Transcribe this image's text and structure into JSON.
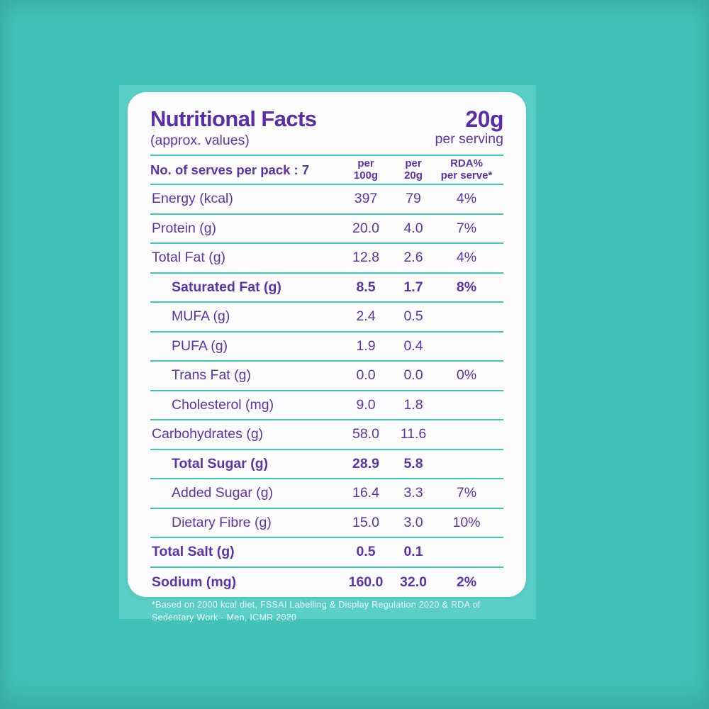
{
  "colors": {
    "background": "#41C2B8",
    "panel": "#5ACFC7",
    "card": "#FCFCFC",
    "text_purple": "#5B34A9",
    "divider_teal": "#3FC9BD"
  },
  "header": {
    "title": "Nutritional Facts",
    "subtitle": "(approx. values)",
    "serving_size": "20g",
    "serving_label": "per serving"
  },
  "table": {
    "serves_label": "No. of serves per pack : 7",
    "columns": [
      {
        "line1": "per",
        "line2": "100g"
      },
      {
        "line1": "per",
        "line2": "20g"
      },
      {
        "line1": "RDA%",
        "line2": "per serve*"
      }
    ],
    "rows": [
      {
        "label": "Energy (kcal)",
        "per100": "397",
        "per20": "79",
        "rda": "4%",
        "bold": false,
        "indent": false
      },
      {
        "label": "Protein (g)",
        "per100": "20.0",
        "per20": "4.0",
        "rda": "7%",
        "bold": false,
        "indent": false
      },
      {
        "label": "Total Fat (g)",
        "per100": "12.8",
        "per20": "2.6",
        "rda": "4%",
        "bold": false,
        "indent": false
      },
      {
        "label": "Saturated Fat (g)",
        "per100": "8.5",
        "per20": "1.7",
        "rda": "8%",
        "bold": true,
        "indent": true
      },
      {
        "label": "MUFA (g)",
        "per100": "2.4",
        "per20": "0.5",
        "rda": "",
        "bold": false,
        "indent": true
      },
      {
        "label": "PUFA (g)",
        "per100": "1.9",
        "per20": "0.4",
        "rda": "",
        "bold": false,
        "indent": true
      },
      {
        "label": "Trans Fat (g)",
        "per100": "0.0",
        "per20": "0.0",
        "rda": "0%",
        "bold": false,
        "indent": true
      },
      {
        "label": "Cholesterol (mg)",
        "per100": "9.0",
        "per20": "1.8",
        "rda": "",
        "bold": false,
        "indent": true
      },
      {
        "label": "Carbohydrates (g)",
        "per100": "58.0",
        "per20": "11.6",
        "rda": "",
        "bold": false,
        "indent": false
      },
      {
        "label": "Total Sugar (g)",
        "per100": "28.9",
        "per20": "5.8",
        "rda": "",
        "bold": true,
        "indent": true
      },
      {
        "label": "Added Sugar (g)",
        "per100": "16.4",
        "per20": "3.3",
        "rda": "7%",
        "bold": false,
        "indent": true
      },
      {
        "label": "Dietary Fibre (g)",
        "per100": "15.0",
        "per20": "3.0",
        "rda": "10%",
        "bold": false,
        "indent": true
      },
      {
        "label": "Total Salt (g)",
        "per100": "0.5",
        "per20": "0.1",
        "rda": "",
        "bold": true,
        "indent": false
      },
      {
        "label": "Sodium (mg)",
        "per100": "160.0",
        "per20": "32.0",
        "rda": "2%",
        "bold": true,
        "indent": false
      }
    ]
  },
  "footnote": {
    "line1": "*Based on 2000 kcal diet, FSSAI Labelling & Display Regulation 2020 & RDA of",
    "line2": "Sedentary Work - Men, ICMR 2020"
  }
}
